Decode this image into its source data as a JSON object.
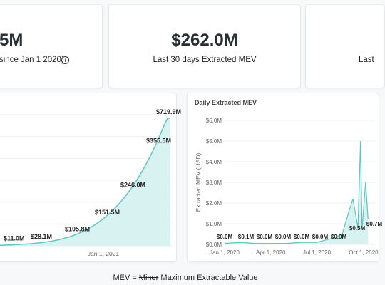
{
  "stats": [
    {
      "value": "5M",
      "label": "since Jan 1 2020)",
      "has_info_icon": true
    },
    {
      "value": "$262.0M",
      "label": "Last 30 days Extracted MEV"
    },
    {
      "value": "",
      "label": "Last"
    }
  ],
  "footer": {
    "prefix": "MEV = ",
    "struck": "Miner",
    "rest": " Maximum Extractable Value"
  },
  "chart_data": [
    {
      "type": "area",
      "title": "",
      "xlabel": "",
      "ylabel": "",
      "x_tick_labels": [
        "Jan 1, 2021"
      ],
      "data_labels": [
        "$11.0M",
        "$28.1M",
        "$105.8M",
        "$151.5M",
        "$246.0M",
        "$355.5M",
        "$719.9M"
      ],
      "cumulative_values_musd": [
        11.0,
        28.1,
        105.8,
        151.5,
        246.0,
        355.5,
        719.9
      ],
      "grid": true,
      "color": "#5fc4c4"
    },
    {
      "type": "area",
      "title": "Daily Extracted MEV",
      "xlabel": "",
      "ylabel": "Extracted MEV (USD)",
      "y_tick_labels": [
        "$0.0M",
        "$1.0M",
        "$2.0M",
        "$3.0M",
        "$4.0M",
        "$5.0M",
        "$6.0M"
      ],
      "ylim": [
        0,
        6.0
      ],
      "x_tick_labels": [
        "Jan 1, 2020",
        "Apr 1, 2020",
        "Jul 1, 2020",
        "Oct 1, 2020"
      ],
      "data_labels": [
        "$0.0M",
        "$0.1M",
        "$0.0M",
        "$0.0M",
        "$0.0M",
        "$0.0M",
        "$0.0M",
        "$0.5M",
        "$0.7M"
      ],
      "points": [
        [
          "2020-01-01",
          0.05
        ],
        [
          "2020-02-01",
          0.1
        ],
        [
          "2020-03-01",
          0.05
        ],
        [
          "2020-04-01",
          0.05
        ],
        [
          "2020-05-01",
          0.05
        ],
        [
          "2020-06-01",
          0.1
        ],
        [
          "2020-07-01",
          0.1
        ],
        [
          "2020-08-01",
          0.3
        ],
        [
          "2020-08-20",
          0.5
        ],
        [
          "2020-09-01",
          1.5
        ],
        [
          "2020-09-10",
          2.2
        ],
        [
          "2020-09-20",
          0.8
        ],
        [
          "2020-09-25",
          5.0
        ],
        [
          "2020-09-28",
          0.7
        ],
        [
          "2020-10-05",
          3.0
        ],
        [
          "2020-10-10",
          1.2
        ]
      ],
      "grid": true,
      "color": "#5fc4c4"
    }
  ]
}
